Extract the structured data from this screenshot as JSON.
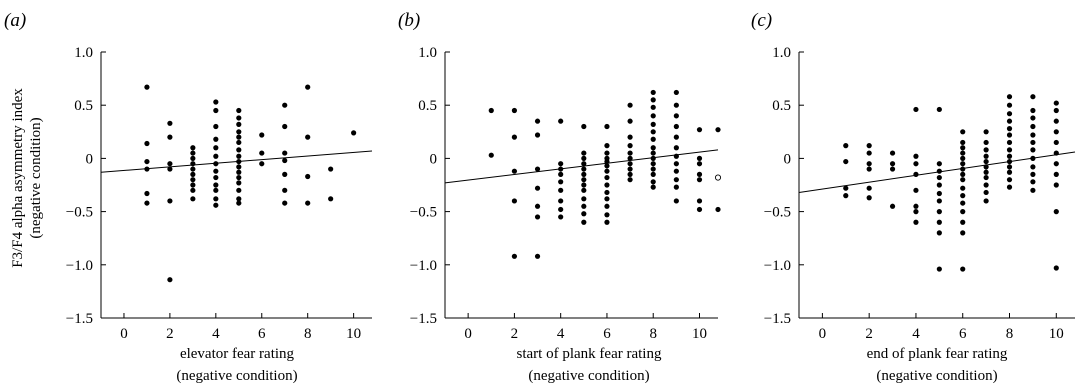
{
  "figure": {
    "panel_labels": [
      "(a)",
      "(b)",
      "(c)"
    ],
    "y_axis_label_line1": "F3/F4 alpha asymmetry index",
    "y_axis_label_line2": "(negative condition)"
  },
  "chart_data": [
    {
      "type": "scatter",
      "panel": "(a)",
      "xlabel": "elevator fear rating",
      "xlabel_line2": "(negative condition)",
      "ylabel": "F3/F4 alpha asymmetry index (negative condition)",
      "xlim": [
        -1,
        10.8
      ],
      "ylim": [
        -1.5,
        1.0
      ],
      "xticks": [
        "0",
        "2",
        "4",
        "6",
        "8",
        "10"
      ],
      "yticks": [
        "1.0",
        "0.5",
        "0",
        "-0.5",
        "-1.0",
        "-1.5"
      ],
      "regression": {
        "x": [
          -1,
          10.8
        ],
        "y": [
          -0.13,
          0.07
        ]
      },
      "points": [
        [
          1,
          0.67
        ],
        [
          1,
          0.14
        ],
        [
          1,
          -0.03
        ],
        [
          1,
          -0.1
        ],
        [
          1,
          -0.33
        ],
        [
          1,
          -0.42
        ],
        [
          2,
          0.33
        ],
        [
          2,
          0.2
        ],
        [
          2,
          -0.05
        ],
        [
          2,
          -0.1
        ],
        [
          2,
          -0.4
        ],
        [
          2,
          -1.14
        ],
        [
          3,
          0.1
        ],
        [
          3,
          0.05
        ],
        [
          3,
          0.0
        ],
        [
          3,
          -0.05
        ],
        [
          3,
          -0.1
        ],
        [
          3,
          -0.15
        ],
        [
          3,
          -0.2
        ],
        [
          3,
          -0.25
        ],
        [
          3,
          -0.3
        ],
        [
          3,
          -0.38
        ],
        [
          4,
          0.53
        ],
        [
          4,
          0.45
        ],
        [
          4,
          0.3
        ],
        [
          4,
          0.18
        ],
        [
          4,
          0.1
        ],
        [
          4,
          0.02
        ],
        [
          4,
          -0.05
        ],
        [
          4,
          -0.12
        ],
        [
          4,
          -0.18
        ],
        [
          4,
          -0.25
        ],
        [
          4,
          -0.3
        ],
        [
          4,
          -0.38
        ],
        [
          4,
          -0.44
        ],
        [
          5,
          0.45
        ],
        [
          5,
          0.38
        ],
        [
          5,
          0.32
        ],
        [
          5,
          0.25
        ],
        [
          5,
          0.2
        ],
        [
          5,
          0.15
        ],
        [
          5,
          0.08
        ],
        [
          5,
          0.02
        ],
        [
          5,
          -0.03
        ],
        [
          5,
          -0.08
        ],
        [
          5,
          -0.13
        ],
        [
          5,
          -0.18
        ],
        [
          5,
          -0.23
        ],
        [
          5,
          -0.3
        ],
        [
          5,
          -0.38
        ],
        [
          5,
          -0.42
        ],
        [
          6,
          0.22
        ],
        [
          6,
          0.05
        ],
        [
          6,
          -0.05
        ],
        [
          7,
          0.5
        ],
        [
          7,
          0.3
        ],
        [
          7,
          0.05
        ],
        [
          7,
          -0.02
        ],
        [
          7,
          -0.15
        ],
        [
          7,
          -0.3
        ],
        [
          7,
          -0.42
        ],
        [
          8,
          0.67
        ],
        [
          8,
          0.2
        ],
        [
          8,
          -0.17
        ],
        [
          8,
          -0.42
        ],
        [
          9,
          -0.1
        ],
        [
          9,
          -0.38
        ],
        [
          10,
          0.24
        ]
      ],
      "open_points": []
    },
    {
      "type": "scatter",
      "panel": "(b)",
      "xlabel": "start of plank fear rating",
      "xlabel_line2": "(negative condition)",
      "ylabel": "F3/F4 alpha asymmetry index (negative condition)",
      "xlim": [
        -1,
        10.8
      ],
      "ylim": [
        -1.5,
        1.0
      ],
      "xticks": [
        "0",
        "2",
        "4",
        "6",
        "8",
        "10"
      ],
      "yticks": [
        "1.0",
        "0.5",
        "0",
        "-0.5",
        "-1.0",
        "-1.5"
      ],
      "regression": {
        "x": [
          -1,
          10.8
        ],
        "y": [
          -0.23,
          0.08
        ]
      },
      "points": [
        [
          1,
          0.45
        ],
        [
          1,
          0.03
        ],
        [
          2,
          0.45
        ],
        [
          2,
          0.2
        ],
        [
          2,
          -0.12
        ],
        [
          2,
          -0.4
        ],
        [
          2,
          -0.92
        ],
        [
          3,
          0.35
        ],
        [
          3,
          0.22
        ],
        [
          3,
          -0.1
        ],
        [
          3,
          -0.28
        ],
        [
          3,
          -0.45
        ],
        [
          3,
          -0.55
        ],
        [
          3,
          -0.92
        ],
        [
          4,
          0.35
        ],
        [
          4,
          -0.05
        ],
        [
          4,
          -0.1
        ],
        [
          4,
          -0.15
        ],
        [
          4,
          -0.22
        ],
        [
          4,
          -0.3
        ],
        [
          4,
          -0.4
        ],
        [
          4,
          -0.48
        ],
        [
          4,
          -0.55
        ],
        [
          5,
          0.3
        ],
        [
          5,
          0.05
        ],
        [
          5,
          0.0
        ],
        [
          5,
          -0.05
        ],
        [
          5,
          -0.1
        ],
        [
          5,
          -0.15
        ],
        [
          5,
          -0.2
        ],
        [
          5,
          -0.25
        ],
        [
          5,
          -0.3
        ],
        [
          5,
          -0.38
        ],
        [
          5,
          -0.45
        ],
        [
          5,
          -0.52
        ],
        [
          5,
          -0.6
        ],
        [
          6,
          0.3
        ],
        [
          6,
          0.12
        ],
        [
          6,
          0.05
        ],
        [
          6,
          0.0
        ],
        [
          6,
          -0.03
        ],
        [
          6,
          -0.07
        ],
        [
          6,
          -0.12
        ],
        [
          6,
          -0.18
        ],
        [
          6,
          -0.25
        ],
        [
          6,
          -0.32
        ],
        [
          6,
          -0.38
        ],
        [
          6,
          -0.45
        ],
        [
          6,
          -0.53
        ],
        [
          6,
          -0.6
        ],
        [
          7,
          0.5
        ],
        [
          7,
          0.35
        ],
        [
          7,
          0.2
        ],
        [
          7,
          0.12
        ],
        [
          7,
          0.05
        ],
        [
          7,
          0.0
        ],
        [
          7,
          -0.05
        ],
        [
          7,
          -0.1
        ],
        [
          7,
          -0.15
        ],
        [
          7,
          -0.2
        ],
        [
          8,
          0.62
        ],
        [
          8,
          0.55
        ],
        [
          8,
          0.48
        ],
        [
          8,
          0.4
        ],
        [
          8,
          0.32
        ],
        [
          8,
          0.25
        ],
        [
          8,
          0.18
        ],
        [
          8,
          0.1
        ],
        [
          8,
          0.05
        ],
        [
          8,
          0.0
        ],
        [
          8,
          -0.05
        ],
        [
          8,
          -0.1
        ],
        [
          8,
          -0.15
        ],
        [
          8,
          -0.22
        ],
        [
          8,
          -0.27
        ],
        [
          9,
          0.62
        ],
        [
          9,
          0.5
        ],
        [
          9,
          0.4
        ],
        [
          9,
          0.3
        ],
        [
          9,
          0.2
        ],
        [
          9,
          0.1
        ],
        [
          9,
          0.02
        ],
        [
          9,
          -0.05
        ],
        [
          9,
          -0.12
        ],
        [
          9,
          -0.2
        ],
        [
          9,
          -0.27
        ],
        [
          9,
          -0.4
        ],
        [
          10,
          0.27
        ],
        [
          10,
          0.0
        ],
        [
          10,
          -0.05
        ],
        [
          10,
          -0.15
        ],
        [
          10,
          -0.2
        ],
        [
          10,
          -0.4
        ],
        [
          10,
          -0.48
        ],
        [
          10.8,
          0.27
        ],
        [
          10.8,
          -0.48
        ]
      ],
      "open_points": [
        [
          10.8,
          -0.18
        ]
      ]
    },
    {
      "type": "scatter",
      "panel": "(c)",
      "xlabel": "end of plank fear rating",
      "xlabel_line2": "(negative condition)",
      "ylabel": "F3/F4 alpha asymmetry index (negative condition)",
      "xlim": [
        -1,
        10.8
      ],
      "ylim": [
        -1.5,
        1.0
      ],
      "xticks": [
        "0",
        "2",
        "4",
        "6",
        "8",
        "10"
      ],
      "yticks": [
        "1.0",
        "0.5",
        "0",
        "-0.5",
        "-1.0",
        "-1.5"
      ],
      "regression": {
        "x": [
          -1,
          10.8
        ],
        "y": [
          -0.32,
          0.06
        ]
      },
      "points": [
        [
          1,
          0.12
        ],
        [
          1,
          -0.03
        ],
        [
          1,
          -0.28
        ],
        [
          1,
          -0.35
        ],
        [
          2,
          0.12
        ],
        [
          2,
          0.05
        ],
        [
          2,
          -0.05
        ],
        [
          2,
          -0.1
        ],
        [
          2,
          -0.28
        ],
        [
          2,
          -0.37
        ],
        [
          3,
          0.05
        ],
        [
          3,
          -0.05
        ],
        [
          3,
          -0.1
        ],
        [
          3,
          -0.45
        ],
        [
          4,
          0.46
        ],
        [
          4,
          0.02
        ],
        [
          4,
          -0.05
        ],
        [
          4,
          -0.15
        ],
        [
          4,
          -0.3
        ],
        [
          4,
          -0.45
        ],
        [
          4,
          -0.5
        ],
        [
          4,
          -0.6
        ],
        [
          5,
          0.46
        ],
        [
          5,
          -0.05
        ],
        [
          5,
          -0.12
        ],
        [
          5,
          -0.18
        ],
        [
          5,
          -0.25
        ],
        [
          5,
          -0.33
        ],
        [
          5,
          -0.4
        ],
        [
          5,
          -0.5
        ],
        [
          5,
          -0.6
        ],
        [
          5,
          -0.7
        ],
        [
          5,
          -1.04
        ],
        [
          6,
          0.25
        ],
        [
          6,
          0.15
        ],
        [
          6,
          0.1
        ],
        [
          6,
          0.05
        ],
        [
          6,
          0.0
        ],
        [
          6,
          -0.05
        ],
        [
          6,
          -0.1
        ],
        [
          6,
          -0.15
        ],
        [
          6,
          -0.2
        ],
        [
          6,
          -0.28
        ],
        [
          6,
          -0.35
        ],
        [
          6,
          -0.42
        ],
        [
          6,
          -0.5
        ],
        [
          6,
          -0.6
        ],
        [
          6,
          -0.7
        ],
        [
          6,
          -1.04
        ],
        [
          7,
          0.25
        ],
        [
          7,
          0.15
        ],
        [
          7,
          0.08
        ],
        [
          7,
          0.02
        ],
        [
          7,
          -0.03
        ],
        [
          7,
          -0.08
        ],
        [
          7,
          -0.13
        ],
        [
          7,
          -0.18
        ],
        [
          7,
          -0.25
        ],
        [
          7,
          -0.32
        ],
        [
          7,
          -0.4
        ],
        [
          8,
          0.58
        ],
        [
          8,
          0.5
        ],
        [
          8,
          0.42
        ],
        [
          8,
          0.35
        ],
        [
          8,
          0.28
        ],
        [
          8,
          0.22
        ],
        [
          8,
          0.15
        ],
        [
          8,
          0.08
        ],
        [
          8,
          0.02
        ],
        [
          8,
          -0.03
        ],
        [
          8,
          -0.08
        ],
        [
          8,
          -0.13
        ],
        [
          8,
          -0.2
        ],
        [
          8,
          -0.27
        ],
        [
          9,
          0.58
        ],
        [
          9,
          0.45
        ],
        [
          9,
          0.38
        ],
        [
          9,
          0.3
        ],
        [
          9,
          0.22
        ],
        [
          9,
          0.15
        ],
        [
          9,
          0.08
        ],
        [
          9,
          0.0
        ],
        [
          9,
          -0.08
        ],
        [
          9,
          -0.15
        ],
        [
          9,
          -0.22
        ],
        [
          9,
          -0.3
        ],
        [
          10,
          0.52
        ],
        [
          10,
          0.45
        ],
        [
          10,
          0.35
        ],
        [
          10,
          0.25
        ],
        [
          10,
          0.15
        ],
        [
          10,
          0.05
        ],
        [
          10,
          -0.05
        ],
        [
          10,
          -0.15
        ],
        [
          10,
          -0.25
        ],
        [
          10,
          -0.5
        ],
        [
          10,
          -1.03
        ]
      ],
      "open_points": []
    }
  ]
}
